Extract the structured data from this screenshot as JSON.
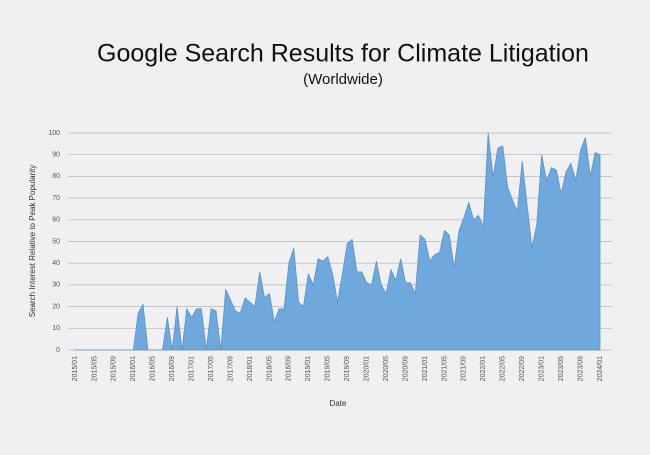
{
  "chart_data": {
    "type": "area",
    "title": "Google Search Results for Climate Litigation",
    "subtitle": "(Worldwide)",
    "x_label": "Date",
    "y_label": "Search Interest Relative to Peak Popularity",
    "color": "#6fa8dc",
    "grid": true,
    "ylim": [
      0,
      100
    ],
    "yticks": [
      0,
      10,
      20,
      30,
      40,
      50,
      60,
      70,
      80,
      90,
      100
    ],
    "categories": [
      "2015/01",
      null,
      null,
      null,
      "2015/05",
      null,
      null,
      null,
      "2015/09",
      null,
      null,
      null,
      "2016/01",
      null,
      null,
      null,
      "2016/05",
      null,
      null,
      null,
      "2016/09",
      null,
      null,
      null,
      "2017/01",
      null,
      null,
      null,
      "2017/05",
      null,
      null,
      null,
      "2017/09",
      null,
      null,
      null,
      "2018/01",
      null,
      null,
      null,
      "2018/05",
      null,
      null,
      null,
      "2018/09",
      null,
      null,
      null,
      "2019/01",
      null,
      null,
      null,
      "2019/05",
      null,
      null,
      null,
      "2019/09",
      null,
      null,
      null,
      "2020/01",
      null,
      null,
      null,
      "2020/05",
      null,
      null,
      null,
      "2020/09",
      null,
      null,
      null,
      "2021/01",
      null,
      null,
      null,
      "2021/05",
      null,
      null,
      null,
      "2021/09",
      null,
      null,
      null,
      "2022/01",
      null,
      null,
      null,
      "2022/05",
      null,
      null,
      null,
      "2022/09",
      null,
      null,
      null,
      "2023/01",
      null,
      null,
      null,
      "2023/05",
      null,
      null,
      null,
      "2023/09",
      null,
      null,
      null,
      "2024/01"
    ],
    "values": [
      0,
      0,
      0,
      0,
      0,
      0,
      0,
      0,
      0,
      0,
      0,
      0,
      0,
      17,
      21,
      0,
      0,
      0,
      0,
      15,
      0,
      20,
      0,
      19,
      15,
      19,
      19,
      0,
      19,
      18,
      0,
      28,
      23,
      18,
      17,
      24,
      22,
      20,
      36,
      24,
      26,
      13,
      19,
      19,
      40,
      47,
      22,
      20,
      35,
      30,
      42,
      41,
      43,
      35,
      22,
      35,
      49,
      51,
      36,
      36,
      31,
      30,
      41,
      30,
      26,
      37,
      32,
      42,
      31,
      31,
      26,
      53,
      51,
      41,
      44,
      45,
      55,
      53,
      38,
      55,
      61,
      68,
      60,
      62,
      57,
      100,
      80,
      93,
      94,
      75,
      69,
      64,
      87,
      67,
      47,
      58,
      90,
      78,
      84,
      83,
      72,
      82,
      86,
      78,
      92,
      98,
      80,
      91,
      90
    ]
  }
}
